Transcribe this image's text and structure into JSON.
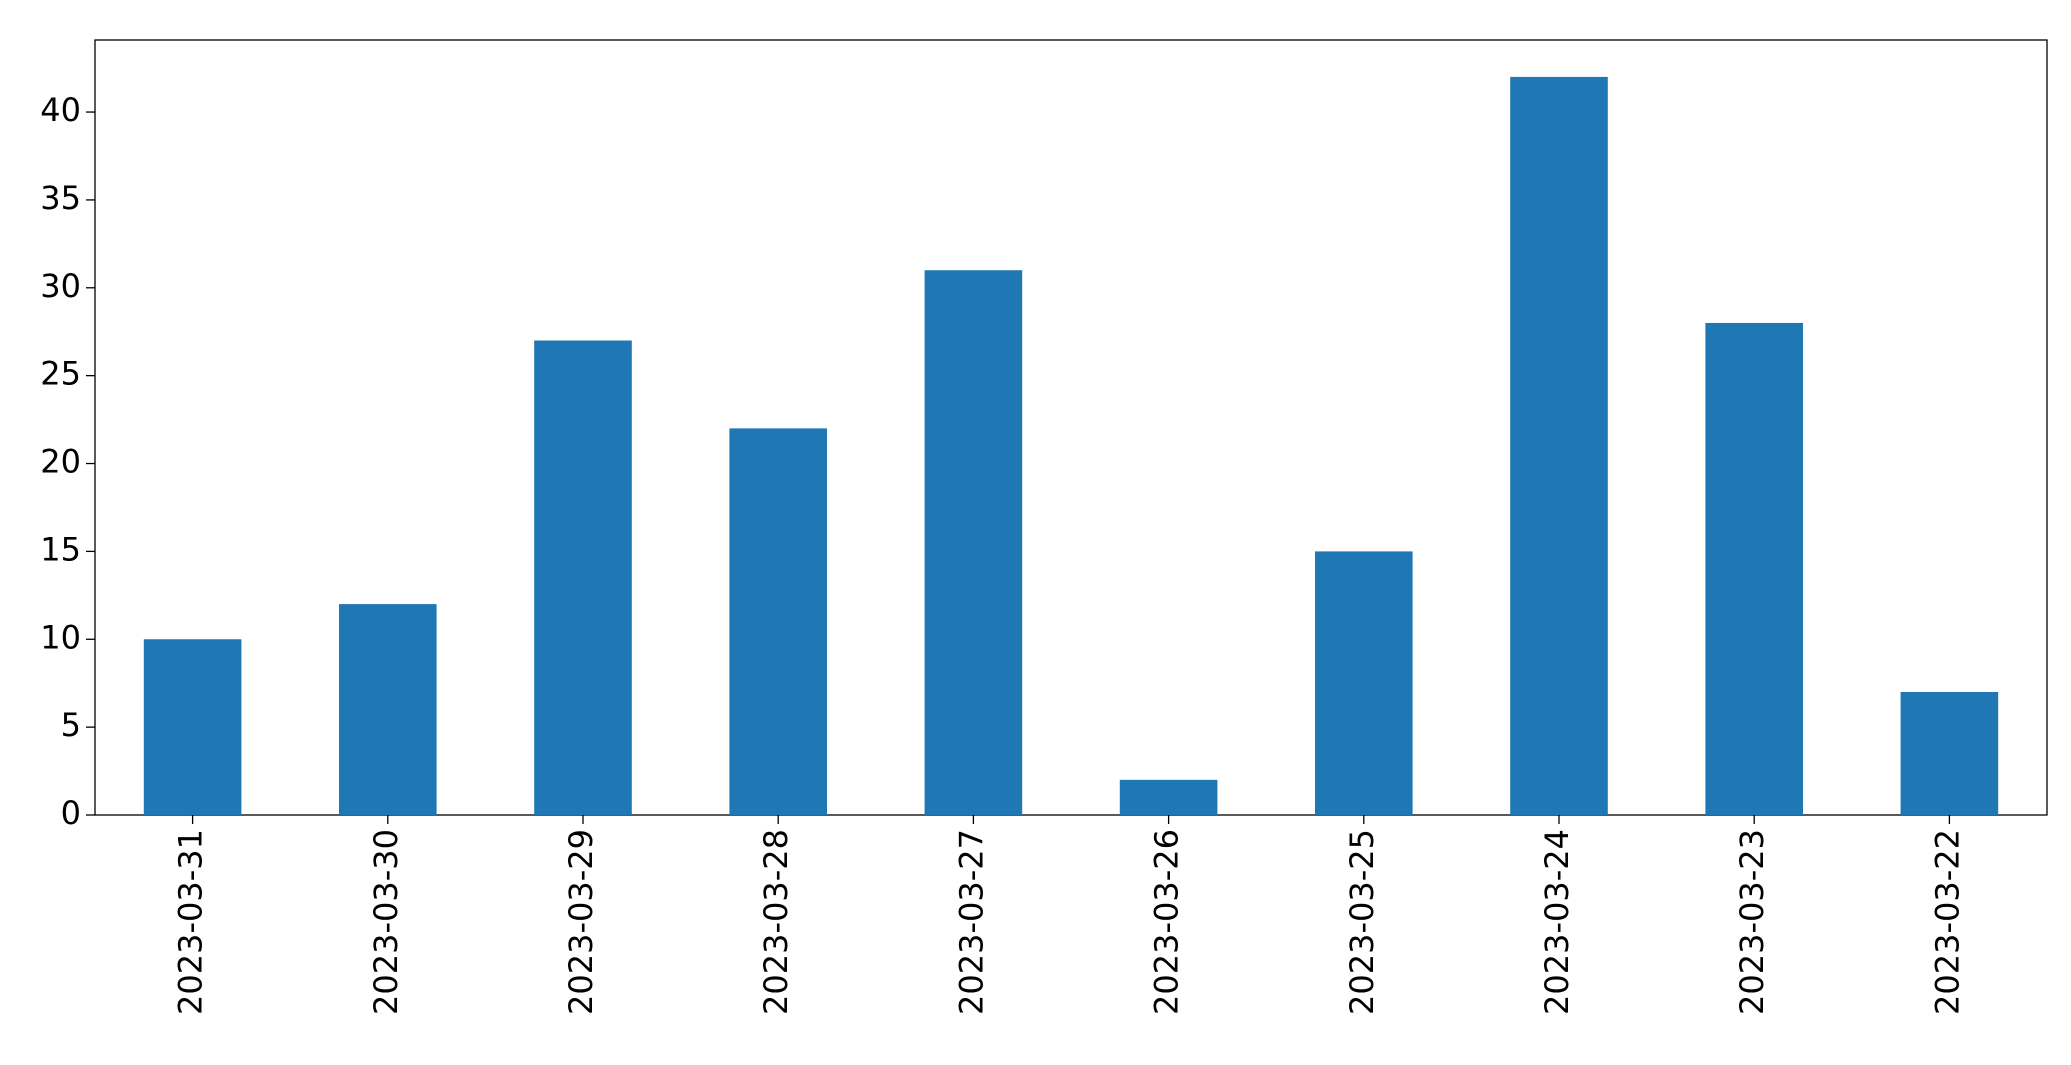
{
  "chart_data": {
    "type": "bar",
    "categories": [
      "2023-03-31",
      "2023-03-30",
      "2023-03-29",
      "2023-03-28",
      "2023-03-27",
      "2023-03-26",
      "2023-03-25",
      "2023-03-24",
      "2023-03-23",
      "2023-03-22"
    ],
    "values": [
      10,
      12,
      27,
      22,
      31,
      2,
      15,
      42,
      28,
      7
    ],
    "color": "#1f77b4",
    "ylim": [
      0,
      44.1
    ],
    "yticks": [
      0,
      5,
      10,
      15,
      20,
      25,
      30,
      35,
      40
    ],
    "grid": false
  }
}
